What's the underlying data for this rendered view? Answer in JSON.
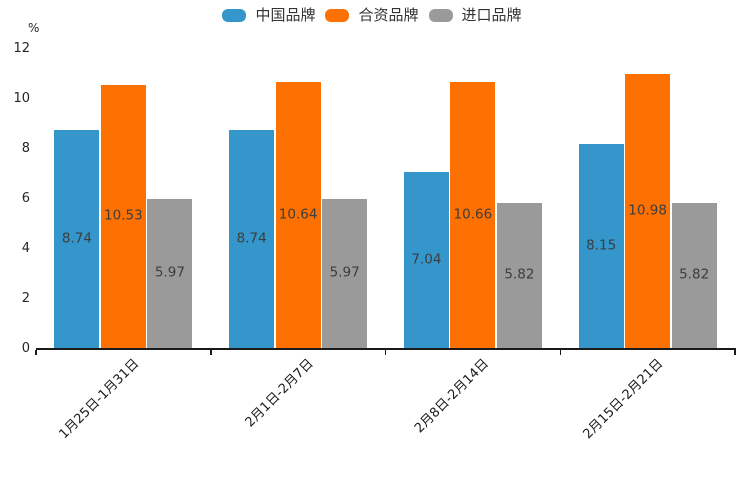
{
  "chart_data": {
    "type": "bar",
    "unit": "%",
    "categories": [
      "1月25日-1月31日",
      "2月1日-2月7日",
      "2月8日-2月14日",
      "2月15日-2月21日"
    ],
    "series": [
      {
        "name": "中国品牌",
        "color": "#3496cb",
        "values": [
          8.74,
          8.74,
          7.04,
          8.15
        ]
      },
      {
        "name": "合资品牌",
        "color": "#fd7002",
        "values": [
          10.53,
          10.64,
          10.66,
          10.98
        ]
      },
      {
        "name": "进口品牌",
        "color": "#9a9a9a",
        "values": [
          5.97,
          5.97,
          5.82,
          5.82
        ]
      }
    ],
    "value_labels": [
      "8.74",
      "10.53",
      "5.97",
      "8.74",
      "10.64",
      "5.97",
      "7.04",
      "10.66",
      "5.82",
      "8.15",
      "10.98",
      "5.82"
    ],
    "ylim": [
      0,
      12
    ],
    "yticks": [
      "0",
      "2",
      "4",
      "6",
      "8",
      "10",
      "12"
    ],
    "grid": false,
    "legend_position": "top",
    "axis_color": "#1a1a1a",
    "label_color": "#3d3d3d"
  }
}
